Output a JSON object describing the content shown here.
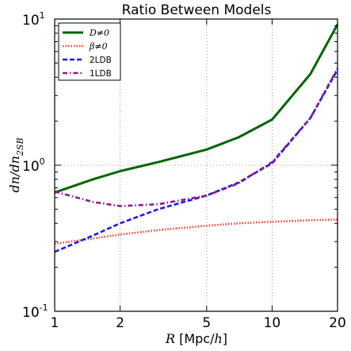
{
  "chart_data": {
    "type": "line",
    "title": "Ratio Between Models",
    "xlabel": "R [Mpc/h]",
    "ylabel": "dn/dn_2SB",
    "xscale": "log",
    "yscale": "log",
    "xlim": [
      1,
      20
    ],
    "ylim": [
      0.1,
      10
    ],
    "xticks": [
      {
        "value": 1,
        "label": "1"
      },
      {
        "value": 2,
        "label": "2"
      },
      {
        "value": 5,
        "label": "5"
      },
      {
        "value": 10,
        "label": "10"
      },
      {
        "value": 20,
        "label": "20"
      }
    ],
    "yticks": [
      {
        "value": 0.1,
        "label": "10^-1"
      },
      {
        "value": 1,
        "label": "10^0"
      },
      {
        "value": 10,
        "label": "10^1"
      }
    ],
    "grid": true,
    "legend_position": "top-left",
    "x": [
      1,
      1.5,
      2,
      3,
      5,
      7,
      10,
      15,
      20
    ],
    "series": [
      {
        "name": "D≠0",
        "color": "#006400",
        "dash": "solid",
        "values": [
          0.65,
          0.8,
          0.91,
          1.05,
          1.28,
          1.55,
          2.05,
          4.2,
          9.2
        ]
      },
      {
        "name": "β≠0",
        "color": "#e8473c",
        "dash": "dotted",
        "values": [
          0.29,
          0.315,
          0.335,
          0.36,
          0.385,
          0.4,
          0.41,
          0.42,
          0.425
        ]
      },
      {
        "name": "2LDB",
        "color": "#1a1ae6",
        "dash": "dashed",
        "values": [
          0.255,
          0.33,
          0.4,
          0.5,
          0.62,
          0.76,
          1.03,
          2.1,
          4.5
        ]
      },
      {
        "name": "1LDB",
        "color": "#8b1a8b",
        "dash": "dashdot",
        "values": [
          0.66,
          0.56,
          0.525,
          0.54,
          0.62,
          0.75,
          1.05,
          2.1,
          4.6
        ]
      }
    ]
  }
}
